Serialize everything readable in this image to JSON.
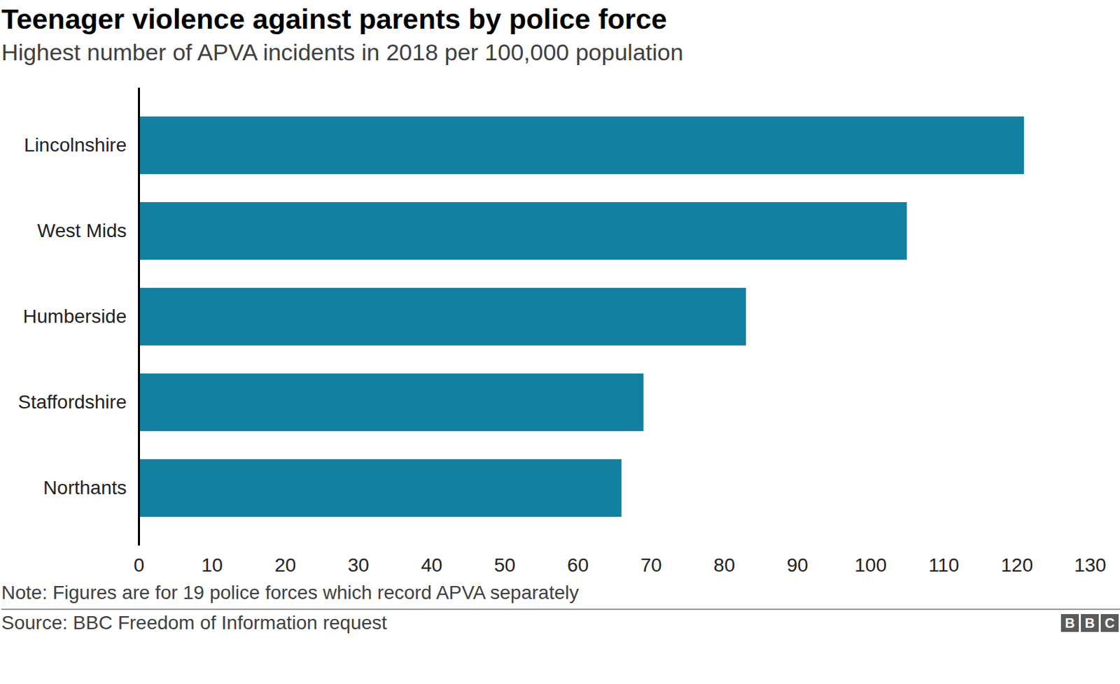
{
  "chart_data": {
    "type": "bar",
    "orientation": "horizontal",
    "title": "Teenager violence against parents by police force",
    "subtitle": "Highest number of APVA incidents in 2018 per 100,000 population",
    "categories": [
      "Lincolnshire",
      "West Mids",
      "Humberside",
      "Staffordshire",
      "Northants"
    ],
    "values": [
      121,
      105,
      83,
      69,
      66
    ],
    "color": "#1380a1",
    "xlim": [
      0,
      130
    ],
    "xticks": [
      0,
      10,
      20,
      30,
      40,
      50,
      60,
      70,
      80,
      90,
      100,
      110,
      120,
      130
    ],
    "grid": false,
    "note": "Note: Figures are for 19 police forces which record APVA separately",
    "source": "Source: BBC Freedom of Information request",
    "logo": "BBC"
  }
}
